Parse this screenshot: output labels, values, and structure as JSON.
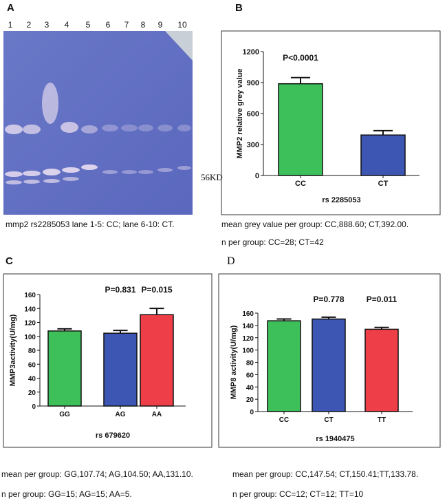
{
  "panel_labels": [
    "A",
    "B",
    "C",
    "D"
  ],
  "gel": {
    "lanes": [
      "1",
      "2",
      "3",
      "4",
      "5",
      "6",
      "7",
      "8",
      "9",
      "10"
    ],
    "marker": "56KD",
    "caption": "mmp2 rs2285053  lane 1-5: CC; lane 6-10: CT."
  },
  "chart_data": [
    {
      "type": "bar",
      "xlabel": "rs 2285053",
      "ylabel": "MMP2 relative grey value",
      "categories": [
        "CC",
        "CT"
      ],
      "values": [
        888.6,
        392
      ],
      "errors": [
        60,
        42
      ],
      "colors": [
        "#3dbf5a",
        "#3e56b3"
      ],
      "p_values": [
        "P<0.0001",
        null
      ],
      "ylim": [
        0,
        1200
      ],
      "yticks": [
        0,
        300,
        600,
        900,
        1200
      ],
      "notes": [
        "mean grey value per group: CC,888.60; CT,392.00.",
        "n per group: CC=28; CT=42"
      ]
    },
    {
      "type": "bar",
      "xlabel": "rs 679620",
      "ylabel": "MMP3activity(U/mg)",
      "categories": [
        "GG",
        "AG",
        "AA"
      ],
      "values": [
        107.74,
        104.5,
        131.1
      ],
      "errors": [
        3,
        4,
        9
      ],
      "colors": [
        "#3dbf5a",
        "#3e56b3",
        "#ee3e48"
      ],
      "p_values": [
        null,
        "P=0.831",
        "P=0.015"
      ],
      "ylim": [
        0,
        160
      ],
      "yticks": [
        0,
        20,
        40,
        60,
        80,
        100,
        120,
        140,
        160
      ],
      "notes": [
        "mean per group: GG,107.74; AG,104.50; AA,131.10.",
        "n per group: GG=15; AG=15; AA=5."
      ]
    },
    {
      "type": "bar",
      "xlabel": "rs 1940475",
      "ylabel": "MMP8 activity(U/mg)",
      "categories": [
        "CC",
        "CT",
        "TT"
      ],
      "values": [
        147.54,
        150.41,
        133.78
      ],
      "errors": [
        3,
        3,
        3
      ],
      "colors": [
        "#3dbf5a",
        "#3e56b3",
        "#ee3e48"
      ],
      "p_values": [
        null,
        "P=0.778",
        "P=0.011"
      ],
      "ylim": [
        0,
        160
      ],
      "yticks": [
        0,
        20,
        40,
        60,
        80,
        100,
        120,
        140,
        160
      ],
      "notes": [
        "mean per group: CC,147.54; CT,150.41;TT,133.78.",
        "n per group: CC=12; CT=12; TT=10"
      ]
    }
  ]
}
